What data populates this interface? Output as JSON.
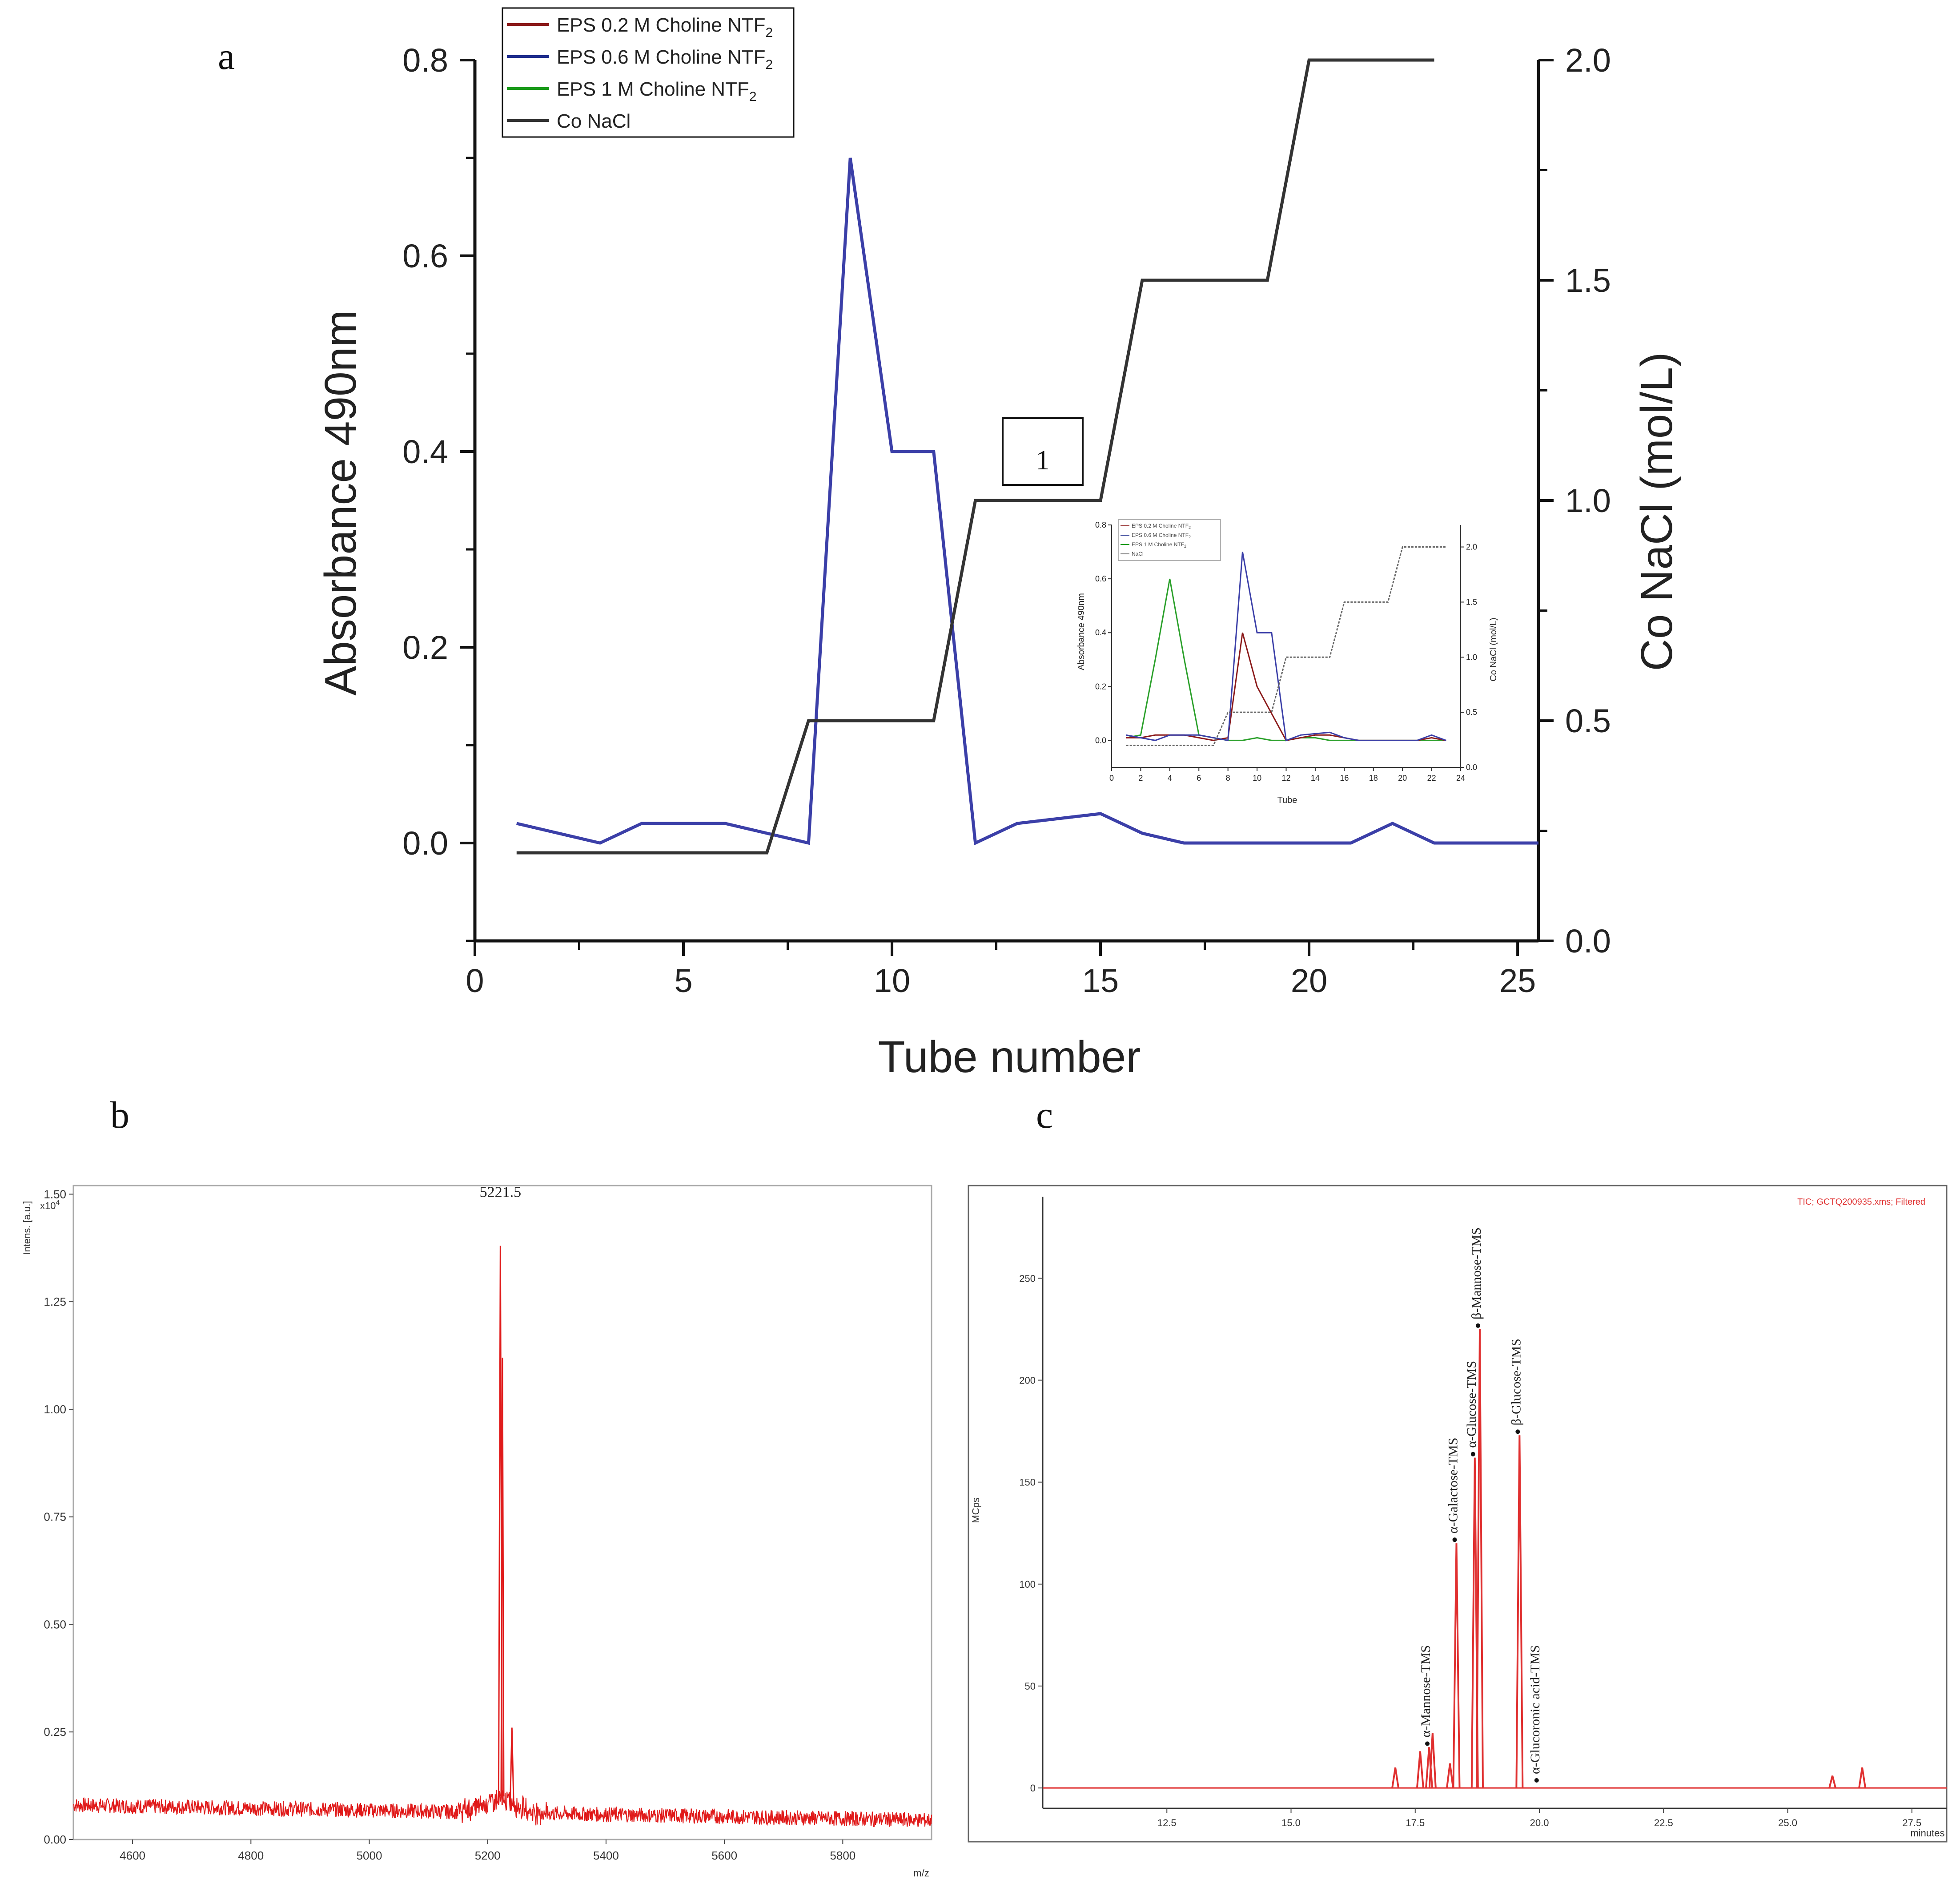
{
  "panel_letters": {
    "a": "a",
    "b": "b",
    "c": "c"
  },
  "annotation_box": "1",
  "chart_data": [
    {
      "id": "a",
      "type": "line",
      "xlabel": "Tube number",
      "ylabel": "Absorbance 490nm",
      "y2label": "Co NaCl (mol/L)",
      "xlim": [
        0,
        25.5
      ],
      "ylim": [
        -0.1,
        0.8
      ],
      "y2lim": [
        0,
        2.0
      ],
      "xticks": [
        0,
        5,
        10,
        15,
        20,
        25
      ],
      "yticks": [
        "0.0",
        "0.2",
        "0.4",
        "0.6",
        "0.8"
      ],
      "y2ticks": [
        "0.0",
        "0.5",
        "1.0",
        "1.5",
        "2.0"
      ],
      "legend": [
        {
          "name": "EPS 0.2 M Choline NTF",
          "sub": "2",
          "color": "#8b1a1a"
        },
        {
          "name": "EPS 0.6 M Choline NTF",
          "sub": "2",
          "color": "#1f2d8c"
        },
        {
          "name": "EPS 1 M Choline NTF",
          "sub": "2",
          "color": "#1a9a1a"
        },
        {
          "name": "Co NaCl",
          "sub": "",
          "color": "#333333"
        }
      ],
      "series": [
        {
          "name": "EPS 0.6 M Choline NTF2",
          "axis": "left",
          "x": [
            1,
            2,
            3,
            4,
            5,
            6,
            7,
            8,
            9,
            10,
            11,
            12,
            13,
            14,
            15,
            16,
            17,
            18,
            19,
            20,
            21,
            22,
            23,
            24,
            25.5
          ],
          "values": [
            0.02,
            0.01,
            0.0,
            0.02,
            0.02,
            0.02,
            0.01,
            0.0,
            0.7,
            0.4,
            0.4,
            0.0,
            0.02,
            0.025,
            0.03,
            0.01,
            0.0,
            0.0,
            0.0,
            0.0,
            0.0,
            0.02,
            0.0,
            0.0,
            0.0
          ],
          "color": "#3b3fa8"
        },
        {
          "name": "Co NaCl",
          "axis": "right",
          "x": [
            1,
            7,
            8,
            11,
            12,
            15,
            16,
            19,
            20,
            23
          ],
          "values": [
            0.2,
            0.2,
            0.5,
            0.5,
            1.0,
            1.0,
            1.5,
            1.5,
            2.0,
            2.0
          ],
          "color": "#333333"
        }
      ]
    },
    {
      "id": "a-inset",
      "type": "line",
      "xlabel": "Tube",
      "ylabel": "Absorbance 490nm",
      "y2label": "Co NaCl (mol/L)",
      "xlim": [
        0,
        24
      ],
      "ylim": [
        -0.1,
        0.8
      ],
      "y2lim": [
        0,
        2.2
      ],
      "xticks": [
        0,
        2,
        4,
        6,
        8,
        10,
        12,
        14,
        16,
        18,
        20,
        22,
        24
      ],
      "yticks": [
        "0.0",
        "0.2",
        "0.4",
        "0.6",
        "0.8"
      ],
      "y2ticks": [
        "0.0",
        "0.5",
        "1.0",
        "1.5",
        "2.0"
      ],
      "legend": [
        {
          "name": "EPS 0.2 M Choline NTF",
          "sub": "2",
          "color": "#8b1a1a"
        },
        {
          "name": "EPS 0.6 M Choline NTF",
          "sub": "2",
          "color": "#1f2d8c"
        },
        {
          "name": "EPS 1 M Choline NTF",
          "sub": "2",
          "color": "#1a9a1a"
        },
        {
          "name": "NaCl",
          "sub": "",
          "color": "#777777"
        }
      ],
      "series": [
        {
          "name": "EPS 1 M Choline NTF2",
          "axis": "left",
          "color": "#2aa02a",
          "x": [
            1,
            2,
            3,
            4,
            5,
            6,
            7,
            8,
            9,
            10,
            11,
            12,
            13,
            14,
            15,
            16,
            17,
            18,
            19,
            20,
            21,
            22,
            23
          ],
          "values": [
            0.01,
            0.02,
            0.3,
            0.6,
            0.3,
            0.02,
            0.01,
            0.0,
            0.0,
            0.01,
            0.0,
            0.0,
            0.01,
            0.01,
            0.0,
            0.0,
            0.0,
            0.0,
            0.0,
            0.0,
            0.0,
            0.0,
            0.0
          ]
        },
        {
          "name": "EPS 0.2 M Choline NTF2",
          "axis": "left",
          "color": "#8b1a1a",
          "x": [
            1,
            2,
            3,
            4,
            5,
            6,
            7,
            8,
            9,
            10,
            11,
            12,
            13,
            14,
            15,
            16,
            17,
            18,
            19,
            20,
            21,
            22,
            23
          ],
          "values": [
            0.01,
            0.01,
            0.02,
            0.02,
            0.02,
            0.01,
            0.0,
            0.01,
            0.4,
            0.2,
            0.1,
            0.0,
            0.01,
            0.02,
            0.02,
            0.01,
            0.0,
            0.0,
            0.0,
            0.0,
            0.0,
            0.01,
            0.0
          ]
        },
        {
          "name": "EPS 0.6 M Choline NTF2",
          "axis": "left",
          "color": "#3b3fa8",
          "x": [
            1,
            2,
            3,
            4,
            5,
            6,
            7,
            8,
            9,
            10,
            11,
            12,
            13,
            14,
            15,
            16,
            17,
            18,
            19,
            20,
            21,
            22,
            23
          ],
          "values": [
            0.02,
            0.01,
            0.0,
            0.02,
            0.02,
            0.02,
            0.01,
            0.0,
            0.7,
            0.4,
            0.4,
            0.0,
            0.02,
            0.025,
            0.03,
            0.01,
            0.0,
            0.0,
            0.0,
            0.0,
            0.0,
            0.02,
            0.0
          ]
        },
        {
          "name": "NaCl",
          "axis": "right",
          "color": "#666666",
          "x": [
            1,
            7,
            8,
            11,
            12,
            15,
            16,
            19,
            20,
            23
          ],
          "values": [
            0.2,
            0.2,
            0.5,
            0.5,
            1.0,
            1.0,
            1.5,
            1.5,
            2.0,
            2.0
          ]
        }
      ]
    },
    {
      "id": "b",
      "type": "line",
      "title": "",
      "xlabel": "m/z",
      "ylabel": "Intens. [a.u.]",
      "yscale_label": "x10",
      "yscale_exp": "4",
      "xlim": [
        4500,
        5950
      ],
      "ylim": [
        0,
        1.52
      ],
      "xticks": [
        4600,
        4800,
        5000,
        5200,
        5400,
        5600,
        5800
      ],
      "yticks": [
        "0.00",
        "0.25",
        "0.50",
        "0.75",
        "1.00",
        "1.25",
        "1.50"
      ],
      "peaks": [
        {
          "x": 5221.5,
          "y": 1.38,
          "label": "5221.5"
        },
        {
          "x": 5241,
          "y": 0.26,
          "label": ""
        }
      ],
      "baseline": [
        0.08,
        0.045
      ],
      "color": "#e01b1b"
    },
    {
      "id": "c",
      "type": "line",
      "title": "TIC;  GCTQ200935.xms;  Filtered",
      "xlabel": "minutes",
      "ylabel": "MCps",
      "xlim": [
        10.0,
        28.2
      ],
      "ylim": [
        -10,
        290
      ],
      "xticks": [
        "12.5",
        "15.0",
        "17.5",
        "20.0",
        "22.5",
        "25.0",
        "27.5"
      ],
      "yticks": [
        "0",
        "50",
        "100",
        "150",
        "200",
        "250"
      ],
      "peaks": [
        {
          "x": 17.1,
          "y": 10,
          "label": ""
        },
        {
          "x": 17.6,
          "y": 18,
          "label": ""
        },
        {
          "x": 17.78,
          "y": 20,
          "label": "α-Mannose-TMS"
        },
        {
          "x": 17.85,
          "y": 27,
          "label": ""
        },
        {
          "x": 18.2,
          "y": 12,
          "label": ""
        },
        {
          "x": 18.33,
          "y": 120,
          "label": "α-Galactose-TMS"
        },
        {
          "x": 18.7,
          "y": 162,
          "label": "α-Glucose-TMS"
        },
        {
          "x": 18.8,
          "y": 225,
          "label": "β-Mannose-TMS"
        },
        {
          "x": 19.6,
          "y": 173,
          "label": "β-Glucose-TMS"
        },
        {
          "x": 19.98,
          "y": 2,
          "label": "α-Glucoronic acid-TMS"
        },
        {
          "x": 25.9,
          "y": 6,
          "label": ""
        },
        {
          "x": 26.5,
          "y": 10,
          "label": ""
        }
      ],
      "color": "#e03030"
    }
  ]
}
